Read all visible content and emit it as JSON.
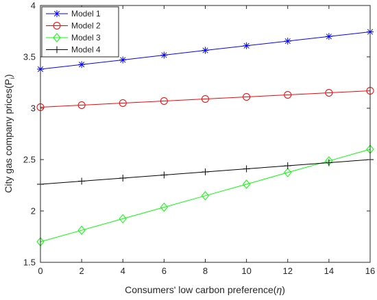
{
  "chart_data": {
    "type": "line",
    "title": "",
    "xlabel_text": "Consumers' low carbon preference(",
    "xlabel_symbol": "η",
    "xlabel_close": ")",
    "ylabel_text": "City gas company prices(P",
    "ylabel_sub": "i",
    "ylabel_close": ")",
    "xlim": [
      0,
      16
    ],
    "ylim": [
      1.5,
      4
    ],
    "xticks": [
      "0",
      "2",
      "4",
      "6",
      "8",
      "10",
      "12",
      "14",
      "16"
    ],
    "yticks": [
      "1.5",
      "2",
      "2.5",
      "3",
      "3.5",
      "4"
    ],
    "grid": false,
    "legend_position": "top-left",
    "x": [
      0,
      2,
      4,
      6,
      8,
      10,
      12,
      14,
      16
    ],
    "series": [
      {
        "name": "Model 1",
        "color": "#0000ff",
        "marker": "asterisk",
        "values": [
          3.38,
          3.425,
          3.47,
          3.517,
          3.563,
          3.608,
          3.653,
          3.698,
          3.743
        ]
      },
      {
        "name": "Model 2",
        "color": "#ff0000",
        "marker": "circle",
        "values": [
          3.01,
          3.03,
          3.05,
          3.07,
          3.09,
          3.11,
          3.13,
          3.15,
          3.17
        ]
      },
      {
        "name": "Model 3",
        "color": "#00ff00",
        "marker": "diamond",
        "values": [
          1.7,
          1.812,
          1.924,
          2.036,
          2.148,
          2.26,
          2.374,
          2.487,
          2.6
        ]
      },
      {
        "name": "Model 4",
        "color": "#000000",
        "marker": "plus",
        "values": [
          2.26,
          2.29,
          2.32,
          2.35,
          2.38,
          2.41,
          2.44,
          2.47,
          2.5
        ]
      }
    ]
  }
}
